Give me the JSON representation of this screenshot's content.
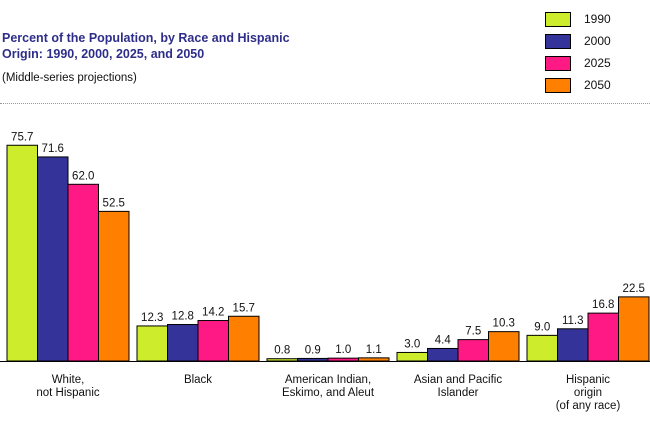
{
  "chart_data": {
    "type": "bar",
    "title": "Percent of the Population, by Race and Hispanic\nOrigin:  1990, 2000, 2025, and 2050",
    "subtitle": "(Middle-series projections)",
    "categories": [
      [
        "White,",
        "not Hispanic"
      ],
      [
        "Black"
      ],
      [
        "American Indian,",
        "Eskimo, and Aleut"
      ],
      [
        "Asian and Pacific",
        "Islander"
      ],
      [
        "Hispanic",
        "origin",
        "(of any race)"
      ]
    ],
    "series": [
      {
        "name": "1990",
        "color": "#ccec2c",
        "values": [
          75.7,
          12.3,
          0.8,
          3.0,
          9.0
        ]
      },
      {
        "name": "2000",
        "color": "#333399",
        "values": [
          71.6,
          12.8,
          0.9,
          4.4,
          11.3
        ]
      },
      {
        "name": "2025",
        "color": "#ff1985",
        "values": [
          62.0,
          14.2,
          1.0,
          7.5,
          16.8
        ]
      },
      {
        "name": "2050",
        "color": "#ff8000",
        "values": [
          52.5,
          15.7,
          1.1,
          10.3,
          22.5
        ]
      }
    ],
    "value_labels": [
      [
        "75.7",
        "12.3",
        "0.8",
        "3.0",
        "9.0"
      ],
      [
        "71.6",
        "12.8",
        "0.9",
        "4.4",
        "11.3"
      ],
      [
        "62.0",
        "14.2",
        "1.0",
        "7.5",
        "16.8"
      ],
      [
        "52.5",
        "15.7",
        "1.1",
        "10.3",
        "22.5"
      ]
    ],
    "xlabel": "",
    "ylabel": "",
    "ylim": [
      0,
      80
    ],
    "grid": false,
    "legend_position": "top-right"
  }
}
